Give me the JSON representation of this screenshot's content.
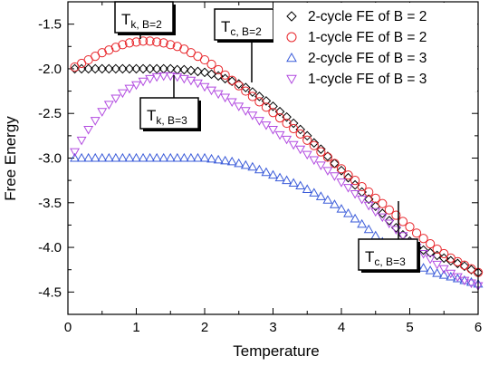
{
  "chart_data": {
    "type": "scatter",
    "xlabel": "Temperature",
    "ylabel": "Free Energy",
    "xlim": [
      0,
      6
    ],
    "ylim": [
      -4.75,
      -1.25
    ],
    "xticks": [
      0,
      1,
      2,
      3,
      4,
      5,
      6
    ],
    "yticks": [
      -1.5,
      -2.0,
      -2.5,
      -3.0,
      -3.5,
      -4.0,
      -4.5
    ],
    "xtick_labels": [
      "0",
      "1",
      "2",
      "3",
      "4",
      "5",
      "6"
    ],
    "ytick_labels": [
      "-1.5",
      "-2.0",
      "-2.5",
      "-3.0",
      "-3.5",
      "-4.0",
      "-4.5"
    ],
    "grid": false,
    "legend_position": "top-right",
    "series": [
      {
        "name": "2-cycle FE of B = 2",
        "marker": "diamond",
        "color": "#000000",
        "x": [
          0.1,
          0.2,
          0.3,
          0.4,
          0.5,
          0.6,
          0.7,
          0.8,
          0.9,
          1.0,
          1.1,
          1.2,
          1.3,
          1.4,
          1.5,
          1.6,
          1.7,
          1.8,
          1.9,
          2.0,
          2.1,
          2.2,
          2.3,
          2.4,
          2.5,
          2.6,
          2.7,
          2.8,
          2.9,
          3.0,
          3.1,
          3.2,
          3.3,
          3.4,
          3.5,
          3.6,
          3.7,
          3.8,
          3.9,
          4.0,
          4.1,
          4.2,
          4.3,
          4.4,
          4.5,
          4.6,
          4.7,
          4.8,
          4.9,
          5.0,
          5.1,
          5.2,
          5.3,
          5.4,
          5.5,
          5.6,
          5.7,
          5.8,
          5.9,
          6.0
        ],
        "y": [
          -2.0,
          -2.0,
          -2.0,
          -2.0,
          -2.0,
          -2.0,
          -2.0,
          -2.0,
          -2.0,
          -2.0,
          -2.0,
          -2.0,
          -2.0,
          -2.0,
          -2.0,
          -2.01,
          -2.01,
          -2.02,
          -2.03,
          -2.04,
          -2.06,
          -2.08,
          -2.11,
          -2.14,
          -2.17,
          -2.21,
          -2.26,
          -2.31,
          -2.36,
          -2.42,
          -2.48,
          -2.54,
          -2.61,
          -2.68,
          -2.75,
          -2.83,
          -2.9,
          -2.98,
          -3.06,
          -3.14,
          -3.22,
          -3.3,
          -3.38,
          -3.46,
          -3.54,
          -3.62,
          -3.7,
          -3.78,
          -3.86,
          -3.93,
          -4.0,
          -4.03,
          -4.06,
          -4.09,
          -4.12,
          -4.15,
          -4.18,
          -4.21,
          -4.25,
          -4.28
        ]
      },
      {
        "name": "1-cycle FE of B = 2",
        "marker": "circle",
        "color": "#e8262b",
        "x": [
          0.1,
          0.2,
          0.3,
          0.4,
          0.5,
          0.6,
          0.7,
          0.8,
          0.9,
          1.0,
          1.1,
          1.2,
          1.3,
          1.4,
          1.5,
          1.6,
          1.7,
          1.8,
          1.9,
          2.0,
          2.1,
          2.2,
          2.3,
          2.4,
          2.5,
          2.6,
          2.7,
          2.8,
          2.9,
          3.0,
          3.1,
          3.2,
          3.3,
          3.4,
          3.5,
          3.6,
          3.7,
          3.8,
          3.9,
          4.0,
          4.1,
          4.2,
          4.3,
          4.4,
          4.5,
          4.6,
          4.7,
          4.8,
          4.9,
          5.0,
          5.1,
          5.2,
          5.3,
          5.4,
          5.5,
          5.6,
          5.7,
          5.8,
          5.9,
          6.0
        ],
        "y": [
          -1.98,
          -1.94,
          -1.9,
          -1.86,
          -1.82,
          -1.79,
          -1.76,
          -1.73,
          -1.71,
          -1.7,
          -1.69,
          -1.69,
          -1.7,
          -1.71,
          -1.73,
          -1.75,
          -1.78,
          -1.82,
          -1.86,
          -1.9,
          -1.95,
          -2.01,
          -2.07,
          -2.13,
          -2.19,
          -2.25,
          -2.31,
          -2.37,
          -2.43,
          -2.49,
          -2.55,
          -2.61,
          -2.67,
          -2.73,
          -2.8,
          -2.86,
          -2.93,
          -2.99,
          -3.06,
          -3.12,
          -3.19,
          -3.25,
          -3.32,
          -3.38,
          -3.45,
          -3.51,
          -3.58,
          -3.64,
          -3.71,
          -3.77,
          -3.84,
          -3.9,
          -3.96,
          -4.02,
          -4.07,
          -4.12,
          -4.16,
          -4.2,
          -4.24,
          -4.28
        ]
      },
      {
        "name": "2-cycle FE of B = 3",
        "marker": "triangle-up",
        "color": "#3a5bd9",
        "x": [
          0.1,
          0.2,
          0.3,
          0.4,
          0.5,
          0.6,
          0.7,
          0.8,
          0.9,
          1.0,
          1.1,
          1.2,
          1.3,
          1.4,
          1.5,
          1.6,
          1.7,
          1.8,
          1.9,
          2.0,
          2.1,
          2.2,
          2.3,
          2.4,
          2.5,
          2.6,
          2.7,
          2.8,
          2.9,
          3.0,
          3.1,
          3.2,
          3.3,
          3.4,
          3.5,
          3.6,
          3.7,
          3.8,
          3.9,
          4.0,
          4.1,
          4.2,
          4.3,
          4.4,
          4.5,
          4.6,
          4.7,
          4.8,
          4.9,
          5.0,
          5.1,
          5.2,
          5.3,
          5.4,
          5.5,
          5.6,
          5.7,
          5.8,
          5.9,
          6.0
        ],
        "y": [
          -3.0,
          -3.0,
          -3.0,
          -3.0,
          -3.0,
          -3.0,
          -3.0,
          -3.0,
          -3.0,
          -3.0,
          -3.0,
          -3.0,
          -3.0,
          -3.0,
          -3.0,
          -3.0,
          -3.0,
          -3.0,
          -3.0,
          -3.0,
          -3.01,
          -3.02,
          -3.03,
          -3.04,
          -3.06,
          -3.08,
          -3.1,
          -3.13,
          -3.16,
          -3.19,
          -3.22,
          -3.25,
          -3.28,
          -3.31,
          -3.35,
          -3.39,
          -3.43,
          -3.47,
          -3.52,
          -3.57,
          -3.62,
          -3.68,
          -3.74,
          -3.8,
          -3.87,
          -3.94,
          -4.0,
          -4.06,
          -4.11,
          -4.16,
          -4.2,
          -4.23,
          -4.26,
          -4.29,
          -4.31,
          -4.33,
          -4.35,
          -4.37,
          -4.39,
          -4.41
        ]
      },
      {
        "name": "1-cycle FE of B = 3",
        "marker": "triangle-down",
        "color": "#b24be0",
        "x": [
          0.1,
          0.2,
          0.3,
          0.4,
          0.5,
          0.6,
          0.7,
          0.8,
          0.9,
          1.0,
          1.1,
          1.2,
          1.3,
          1.4,
          1.5,
          1.6,
          1.7,
          1.8,
          1.9,
          2.0,
          2.1,
          2.2,
          2.3,
          2.4,
          2.5,
          2.6,
          2.7,
          2.8,
          2.9,
          3.0,
          3.1,
          3.2,
          3.3,
          3.4,
          3.5,
          3.6,
          3.7,
          3.8,
          3.9,
          4.0,
          4.1,
          4.2,
          4.3,
          4.4,
          4.5,
          4.6,
          4.7,
          4.8,
          4.9,
          5.0,
          5.1,
          5.2,
          5.3,
          5.4,
          5.5,
          5.6,
          5.7,
          5.8,
          5.9,
          6.0
        ],
        "y": [
          -2.93,
          -2.8,
          -2.68,
          -2.58,
          -2.48,
          -2.4,
          -2.33,
          -2.27,
          -2.22,
          -2.18,
          -2.14,
          -2.11,
          -2.09,
          -2.08,
          -2.08,
          -2.09,
          -2.11,
          -2.13,
          -2.16,
          -2.2,
          -2.24,
          -2.28,
          -2.32,
          -2.37,
          -2.42,
          -2.47,
          -2.52,
          -2.58,
          -2.63,
          -2.68,
          -2.74,
          -2.79,
          -2.85,
          -2.9,
          -2.96,
          -3.02,
          -3.08,
          -3.14,
          -3.2,
          -3.27,
          -3.33,
          -3.4,
          -3.46,
          -3.53,
          -3.6,
          -3.66,
          -3.73,
          -3.8,
          -3.87,
          -3.94,
          -4.0,
          -4.07,
          -4.13,
          -4.19,
          -4.24,
          -4.29,
          -4.33,
          -4.37,
          -4.4,
          -4.43
        ]
      }
    ],
    "annotations": [
      {
        "id": "tk-b2",
        "main": "T",
        "sub": "k, B=2",
        "target_x": 1.15,
        "target_y": -1.7
      },
      {
        "id": "tc-b2",
        "main": "T",
        "sub": "c, B=2",
        "target_x": 2.7,
        "target_y": -2.31
      },
      {
        "id": "tk-b3",
        "main": "T",
        "sub": "k, B=3",
        "target_x": 1.58,
        "target_y": -2.08
      },
      {
        "id": "tc-b3",
        "main": "T",
        "sub": "c, B=3",
        "target_x": 4.85,
        "target_y": -3.78
      }
    ]
  }
}
